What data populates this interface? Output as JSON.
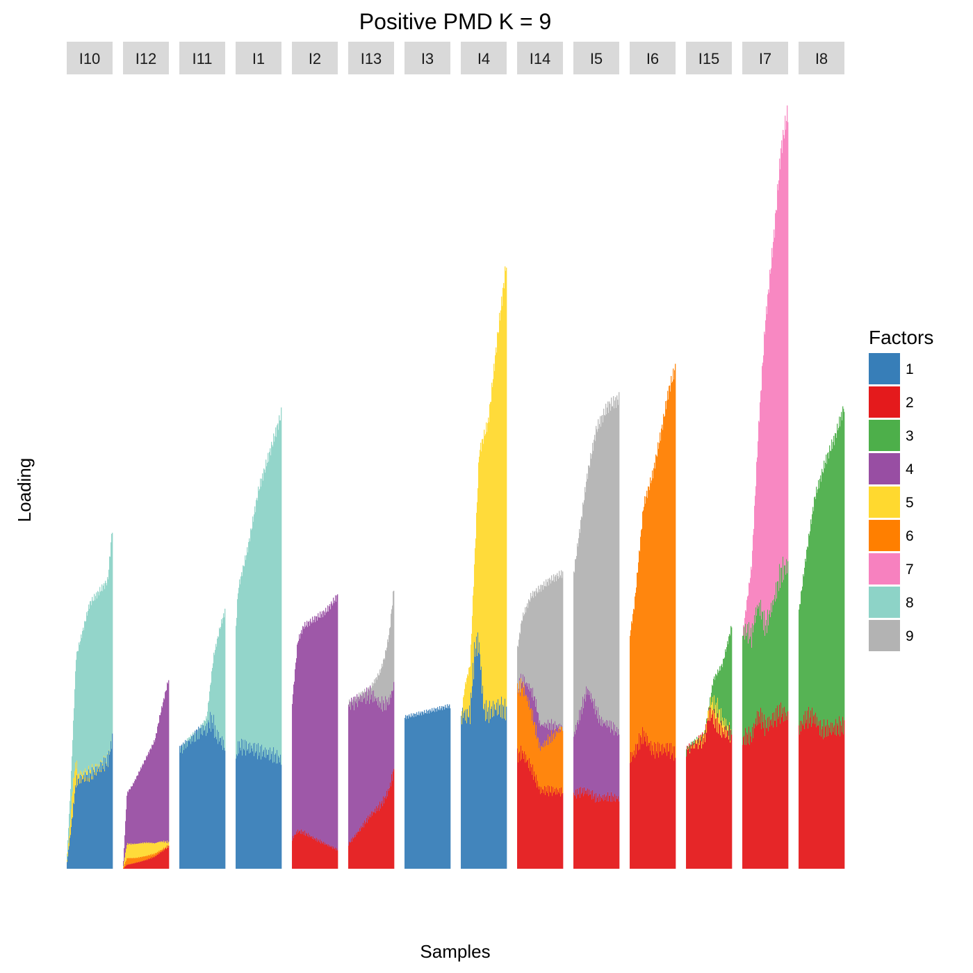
{
  "chart_data": {
    "type": "bar",
    "subtype": "stacked-structure-plot",
    "title": "Positive PMD K = 9",
    "xlabel": "Samples",
    "ylabel": "Loading",
    "ylim": [
      0,
      1.0
    ],
    "grid": false,
    "legend": {
      "title": "Factors",
      "placement": "right",
      "entries": [
        {
          "label": "1",
          "color": "#377eb8"
        },
        {
          "label": "2",
          "color": "#e41a1c"
        },
        {
          "label": "3",
          "color": "#4daf4a"
        },
        {
          "label": "4",
          "color": "#984ea3"
        },
        {
          "label": "5",
          "color": "#ffd92f"
        },
        {
          "label": "6",
          "color": "#ff7f00"
        },
        {
          "label": "7",
          "color": "#f781bf"
        },
        {
          "label": "8",
          "color": "#8dd3c7"
        },
        {
          "label": "9",
          "color": "#b3b3b3"
        }
      ]
    },
    "panels": [
      {
        "label": "I10",
        "profile": [
          [
            0,
            0.02
          ],
          [
            0.08,
            0.11
          ],
          [
            0.2,
            0.28
          ],
          [
            0.5,
            0.35
          ],
          [
            0.9,
            0.38
          ],
          [
            1,
            0.45
          ]
        ],
        "layers": [
          {
            "factor": "1",
            "shares": [
              [
                0,
                0.45
              ],
              [
                0.5,
                0.35
              ],
              [
                1,
                0.38
              ]
            ]
          },
          {
            "factor": "5",
            "shares": [
              [
                0,
                0.15
              ],
              [
                0.12,
                0.2
              ],
              [
                0.25,
                0.02
              ],
              [
                1,
                0.0
              ]
            ]
          },
          {
            "factor": "8",
            "rest": true
          }
        ]
      },
      {
        "label": "I12",
        "profile": [
          [
            0,
            0.01
          ],
          [
            0.08,
            0.1
          ],
          [
            0.2,
            0.11
          ],
          [
            0.7,
            0.17
          ],
          [
            0.8,
            0.2
          ],
          [
            1,
            0.25
          ]
        ],
        "layers": [
          {
            "factor": "2",
            "shares": [
              [
                0,
                0.05
              ],
              [
                0.5,
                0.08
              ],
              [
                1,
                0.12
              ]
            ]
          },
          {
            "factor": "6",
            "shares": [
              [
                0,
                0.1
              ],
              [
                0.3,
                0.05
              ],
              [
                1,
                0.0
              ]
            ]
          },
          {
            "factor": "5",
            "shares": [
              [
                0,
                0.2
              ],
              [
                0.5,
                0.12
              ],
              [
                1,
                0.02
              ]
            ]
          },
          {
            "factor": "4",
            "rest": true
          }
        ]
      },
      {
        "label": "I11",
        "profile": [
          [
            0,
            0.16
          ],
          [
            0.5,
            0.19
          ],
          [
            0.6,
            0.2
          ],
          [
            0.75,
            0.28
          ],
          [
            0.9,
            0.32
          ],
          [
            1,
            0.34
          ]
        ],
        "layers": [
          {
            "factor": "1",
            "shares": [
              [
                0,
                1.0
              ],
              [
                0.5,
                0.98
              ],
              [
                0.62,
                0.9
              ],
              [
                0.8,
                0.6
              ],
              [
                1,
                0.47
              ]
            ]
          },
          {
            "factor": "8",
            "rest": true
          }
        ]
      },
      {
        "label": "I1",
        "profile": [
          [
            0,
            0.32
          ],
          [
            0.05,
            0.37
          ],
          [
            0.25,
            0.42
          ],
          [
            0.5,
            0.5
          ],
          [
            0.75,
            0.55
          ],
          [
            0.9,
            0.58
          ],
          [
            1,
            0.6
          ]
        ],
        "layers": [
          {
            "factor": "1",
            "shares": [
              [
                0,
                0.45
              ],
              [
                0.5,
                0.31
              ],
              [
                1,
                0.24
              ]
            ]
          },
          {
            "factor": "8",
            "rest": true
          }
        ]
      },
      {
        "label": "I2",
        "profile": [
          [
            0,
            0.22
          ],
          [
            0.12,
            0.3
          ],
          [
            0.25,
            0.32
          ],
          [
            0.75,
            0.34
          ],
          [
            1,
            0.36
          ]
        ],
        "layers": [
          {
            "factor": "2",
            "shares": [
              [
                0,
                0.18
              ],
              [
                0.5,
                0.12
              ],
              [
                1,
                0.07
              ]
            ]
          },
          {
            "factor": "4",
            "rest": true
          }
        ]
      },
      {
        "label": "I13",
        "profile": [
          [
            0,
            0.22
          ],
          [
            0.5,
            0.24
          ],
          [
            0.7,
            0.26
          ],
          [
            0.8,
            0.28
          ],
          [
            0.9,
            0.31
          ],
          [
            1,
            0.37
          ]
        ],
        "layers": [
          {
            "factor": "2",
            "shares": [
              [
                0,
                0.15
              ],
              [
                0.5,
                0.3
              ],
              [
                1,
                0.35
              ]
            ]
          },
          {
            "factor": "4",
            "shares": [
              [
                0,
                0.85
              ],
              [
                0.5,
                0.66
              ],
              [
                1,
                0.3
              ]
            ]
          },
          {
            "factor": "9",
            "rest": true
          }
        ]
      },
      {
        "label": "I3",
        "profile": [
          [
            0,
            0.2
          ],
          [
            1,
            0.215
          ]
        ],
        "layers": [
          {
            "factor": "1",
            "rest": true
          }
        ]
      },
      {
        "label": "I4",
        "profile": [
          [
            0,
            0.2
          ],
          [
            0.08,
            0.24
          ],
          [
            0.2,
            0.27
          ],
          [
            0.4,
            0.55
          ],
          [
            0.6,
            0.59
          ],
          [
            0.8,
            0.7
          ],
          [
            1,
            0.8
          ]
        ],
        "layers": [
          {
            "factor": "1",
            "shares": [
              [
                0,
                1.0
              ],
              [
                0.1,
                0.82
              ],
              [
                0.3,
                0.7
              ],
              [
                0.5,
                0.37
              ],
              [
                1,
                0.26
              ]
            ]
          },
          {
            "factor": "5",
            "rest": true
          }
        ]
      },
      {
        "label": "I14",
        "profile": [
          [
            0,
            0.29
          ],
          [
            0.1,
            0.33
          ],
          [
            0.3,
            0.36
          ],
          [
            0.7,
            0.38
          ],
          [
            1,
            0.39
          ]
        ],
        "layers": [
          {
            "factor": "2",
            "shares": [
              [
                0,
                0.51
              ],
              [
                0.5,
                0.28
              ],
              [
                1,
                0.26
              ]
            ]
          },
          {
            "factor": "6",
            "shares": [
              [
                0,
                0.3
              ],
              [
                0.5,
                0.15
              ],
              [
                1,
                0.22
              ]
            ]
          },
          {
            "factor": "4",
            "shares": [
              [
                0,
                0.0
              ],
              [
                0.4,
                0.1
              ],
              [
                0.7,
                0.05
              ],
              [
                1,
                0.0
              ]
            ]
          },
          {
            "factor": "9",
            "rest": true
          }
        ]
      },
      {
        "label": "I5",
        "profile": [
          [
            0,
            0.39
          ],
          [
            0.3,
            0.52
          ],
          [
            0.5,
            0.58
          ],
          [
            0.75,
            0.61
          ],
          [
            1,
            0.62
          ]
        ],
        "layers": [
          {
            "factor": "2",
            "shares": [
              [
                0,
                0.25
              ],
              [
                0.5,
                0.16
              ],
              [
                1,
                0.15
              ]
            ]
          },
          {
            "factor": "4",
            "shares": [
              [
                0,
                0.2
              ],
              [
                0.3,
                0.26
              ],
              [
                0.6,
                0.17
              ],
              [
                1,
                0.14
              ]
            ]
          },
          {
            "factor": "9",
            "rest": true
          }
        ]
      },
      {
        "label": "I6",
        "profile": [
          [
            0,
            0.31
          ],
          [
            0.1,
            0.35
          ],
          [
            0.3,
            0.48
          ],
          [
            0.5,
            0.52
          ],
          [
            0.7,
            0.58
          ],
          [
            0.85,
            0.63
          ],
          [
            1,
            0.66
          ]
        ],
        "layers": [
          {
            "factor": "2",
            "shares": [
              [
                0,
                0.47
              ],
              [
                0.5,
                0.3
              ],
              [
                1,
                0.23
              ]
            ]
          },
          {
            "factor": "6",
            "rest": true
          }
        ]
      },
      {
        "label": "I15",
        "profile": [
          [
            0,
            0.16
          ],
          [
            0.4,
            0.18
          ],
          [
            0.6,
            0.25
          ],
          [
            0.8,
            0.27
          ],
          [
            1,
            0.32
          ]
        ],
        "layers": [
          {
            "factor": "2",
            "shares": [
              [
                0,
                1.0
              ],
              [
                0.5,
                0.95
              ],
              [
                0.62,
                0.78
              ],
              [
                1,
                0.55
              ]
            ]
          },
          {
            "factor": "5",
            "shares": [
              [
                0,
                0.0
              ],
              [
                0.3,
                0.05
              ],
              [
                0.7,
                0.08
              ],
              [
                1,
                0.0
              ]
            ]
          },
          {
            "factor": "3",
            "rest": true
          }
        ]
      },
      {
        "label": "I7",
        "profile": [
          [
            0,
            0.31
          ],
          [
            0.2,
            0.4
          ],
          [
            0.35,
            0.58
          ],
          [
            0.5,
            0.72
          ],
          [
            0.7,
            0.84
          ],
          [
            0.85,
            0.95
          ],
          [
            1,
            1.0
          ]
        ],
        "layers": [
          {
            "factor": "2",
            "shares": [
              [
                0,
                0.55
              ],
              [
                0.5,
                0.26
              ],
              [
                1,
                0.2
              ]
            ]
          },
          {
            "factor": "3",
            "shares": [
              [
                0,
                0.45
              ],
              [
                0.25,
                0.3
              ],
              [
                0.5,
                0.18
              ],
              [
                1,
                0.2
              ]
            ]
          },
          {
            "factor": "7",
            "rest": true
          }
        ]
      },
      {
        "label": "I8",
        "profile": [
          [
            0,
            0.34
          ],
          [
            0.15,
            0.41
          ],
          [
            0.35,
            0.49
          ],
          [
            0.6,
            0.54
          ],
          [
            0.8,
            0.57
          ],
          [
            1,
            0.61
          ]
        ],
        "layers": [
          {
            "factor": "2",
            "shares": [
              [
                0,
                0.54
              ],
              [
                0.5,
                0.35
              ],
              [
                1,
                0.31
              ]
            ]
          },
          {
            "factor": "3",
            "rest": true
          }
        ]
      }
    ]
  }
}
